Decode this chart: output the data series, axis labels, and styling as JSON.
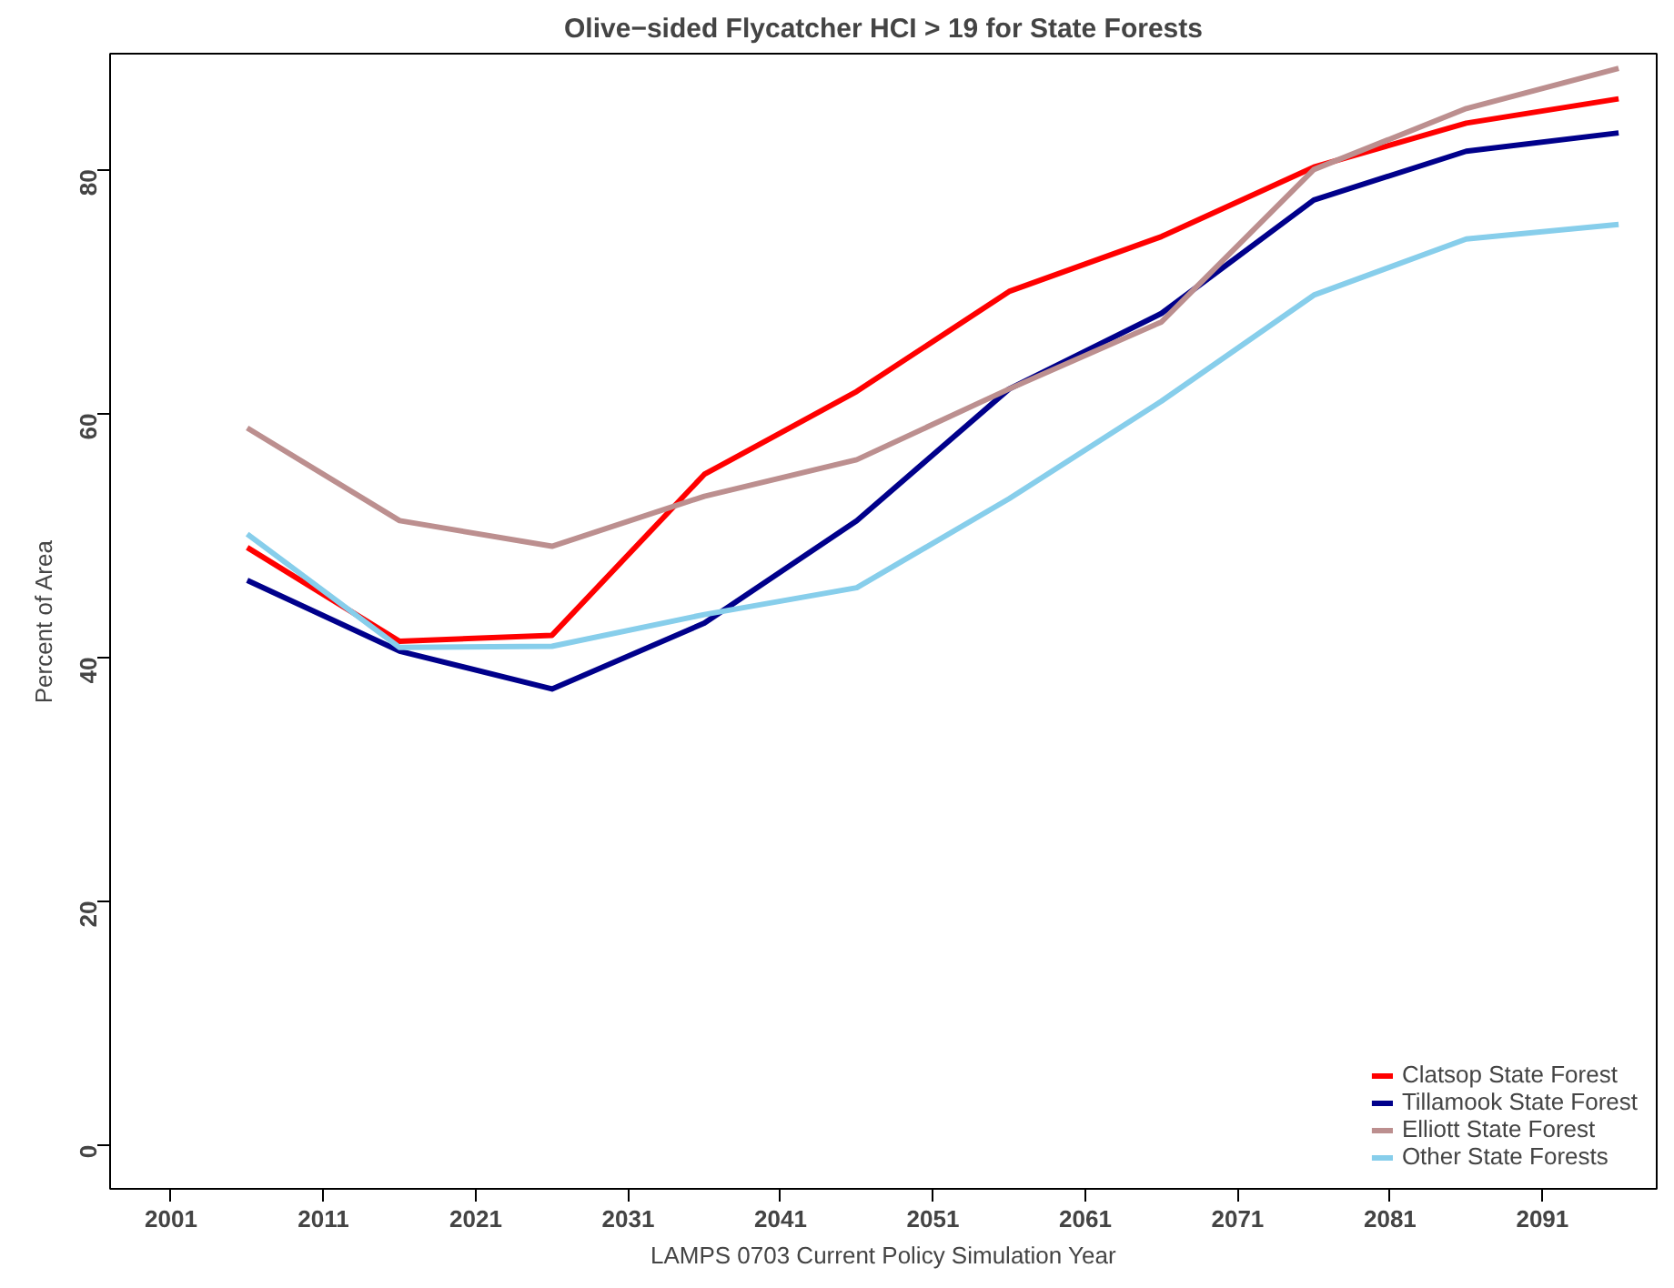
{
  "chart_data": {
    "type": "line",
    "title": "Olive−sided Flycatcher HCI > 19 for State Forests",
    "xlabel": "LAMPS 0703 Current Policy Simulation Year",
    "ylabel": "Percent of Area",
    "x": [
      2006,
      2016,
      2026,
      2036,
      2046,
      2056,
      2066,
      2076,
      2086,
      2096
    ],
    "series": [
      {
        "name": "Clatsop State Forest",
        "color": "#ff0000",
        "values": [
          49,
          41.3,
          41.8,
          55,
          61.8,
          70,
          74.5,
          80.2,
          83.8,
          85.8
        ]
      },
      {
        "name": "Tillamook State Forest",
        "color": "#00008b",
        "values": [
          46.3,
          40.5,
          37.4,
          42.8,
          51.2,
          62,
          68.2,
          77.5,
          81.5,
          83
        ]
      },
      {
        "name": "Elliott State Forest",
        "color": "#bc8f8f",
        "values": [
          58.8,
          51.2,
          49.1,
          53.2,
          56.2,
          62,
          67.5,
          80,
          85,
          88.3
        ]
      },
      {
        "name": "Other State Forests",
        "color": "#87ceeb",
        "values": [
          50.1,
          40.8,
          40.9,
          43.5,
          45.7,
          53,
          61,
          69.7,
          74.3,
          75.5
        ]
      }
    ],
    "xlim": [
      1997,
      2098.5
    ],
    "ylim": [
      -3.6,
      89.5
    ],
    "xticks": [
      2001,
      2011,
      2021,
      2031,
      2041,
      2051,
      2061,
      2071,
      2081,
      2091
    ],
    "yticks": [
      0,
      20,
      40,
      60,
      80
    ],
    "grid": false,
    "legend": "bottom right",
    "marker": "none",
    "line_style": "solid"
  }
}
